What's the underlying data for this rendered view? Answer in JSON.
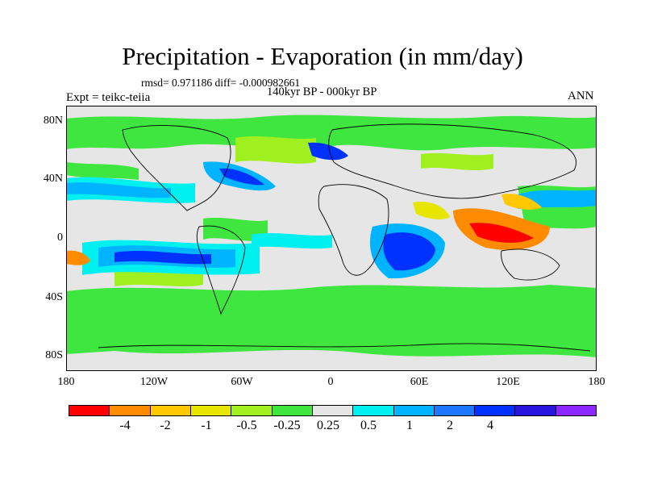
{
  "title": "Precipitation - Evaporation (in mm/day)",
  "stats": "rmsd= 0.971186 diff= -0.000982661",
  "period": "140kyr BP - 000kyr BP",
  "experiment": "Expt = teikc-teiia",
  "season": "ANN",
  "y_ticks": [
    "80N",
    "40N",
    "0",
    "40S",
    "80S"
  ],
  "x_ticks": [
    "180",
    "120W",
    "60W",
    "0",
    "60E",
    "120E",
    "180"
  ],
  "colorbar": {
    "colors": [
      "#ff0000",
      "#ff8c00",
      "#ffc800",
      "#e6e600",
      "#a0f020",
      "#40e640",
      "#e6e6e6",
      "#00f0f0",
      "#00b4ff",
      "#1e78ff",
      "#0032ff",
      "#2814dc",
      "#8c28ff"
    ],
    "labels": [
      "-4",
      "-2",
      "-1",
      "-0.5",
      "-0.25",
      "0.25",
      "0.5",
      "1",
      "2",
      "4"
    ]
  }
}
